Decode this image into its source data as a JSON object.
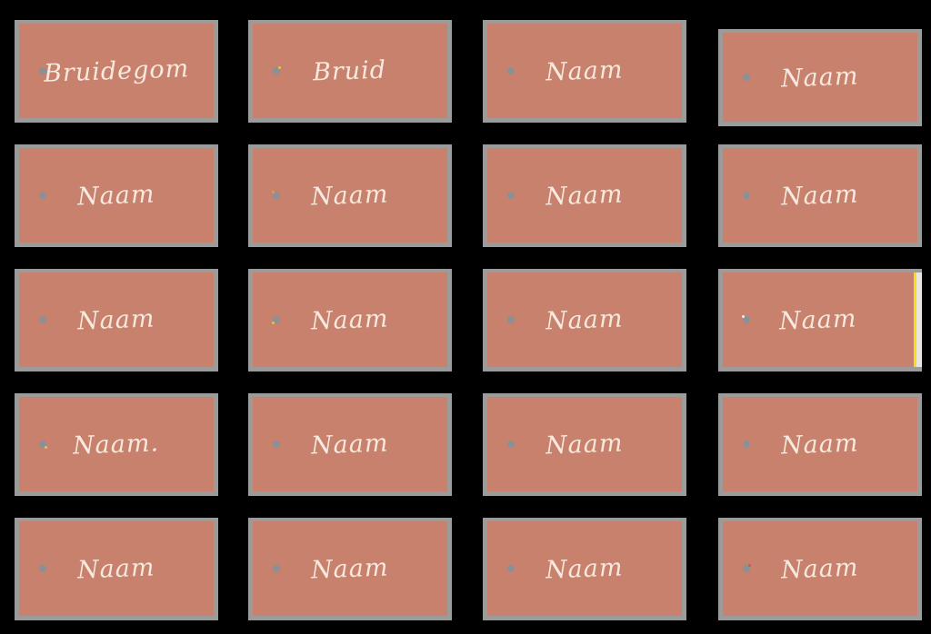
{
  "sheet": {
    "background_color": "#000000",
    "rows": 5,
    "columns": 4
  },
  "card_style": {
    "fill_color": "#c7816c",
    "frame_color": "#9b9b9b",
    "text_color": "#f8e9df",
    "hole_color": "#8a9196"
  },
  "page_edge_guide": {
    "line_color": "#f0e11c",
    "margin_color": "#e9e6e1"
  },
  "cards": [
    {
      "row": 1,
      "col": 1,
      "label": "Bruidegom",
      "hole_accent": null,
      "modifiers": []
    },
    {
      "row": 1,
      "col": 2,
      "label": "Bruid",
      "hole_accent": {
        "color": "#e6c63d",
        "corner": "top-right"
      },
      "modifiers": []
    },
    {
      "row": 1,
      "col": 3,
      "label": "Naam",
      "hole_accent": null,
      "modifiers": []
    },
    {
      "row": 1,
      "col": 4,
      "label": "Naam",
      "hole_accent": null,
      "modifiers": [
        "shifted-down"
      ]
    },
    {
      "row": 2,
      "col": 1,
      "label": "Naam",
      "hole_accent": null,
      "modifiers": []
    },
    {
      "row": 2,
      "col": 2,
      "label": "Naam",
      "hole_accent": {
        "color": "#e09b4a",
        "corner": "top-left"
      },
      "modifiers": []
    },
    {
      "row": 2,
      "col": 3,
      "label": "Naam",
      "hole_accent": null,
      "modifiers": []
    },
    {
      "row": 2,
      "col": 4,
      "label": "Naam",
      "hole_accent": null,
      "modifiers": []
    },
    {
      "row": 3,
      "col": 1,
      "label": "Naam",
      "hole_accent": null,
      "modifiers": []
    },
    {
      "row": 3,
      "col": 2,
      "label": "Naam",
      "hole_accent": {
        "color": "#e6c63d",
        "corner": "bottom-left"
      },
      "modifiers": []
    },
    {
      "row": 3,
      "col": 3,
      "label": "Naam",
      "hole_accent": null,
      "modifiers": []
    },
    {
      "row": 3,
      "col": 4,
      "label": "Naam",
      "hole_accent": {
        "color": "#f4efe2",
        "corner": "top-left"
      },
      "modifiers": [
        "page-edge"
      ]
    },
    {
      "row": 4,
      "col": 1,
      "label": "Naam.",
      "hole_accent": {
        "color": "#e6c63d",
        "corner": "bottom-right"
      },
      "modifiers": []
    },
    {
      "row": 4,
      "col": 2,
      "label": "Naam",
      "hole_accent": null,
      "modifiers": []
    },
    {
      "row": 4,
      "col": 3,
      "label": "Naam",
      "hole_accent": null,
      "modifiers": []
    },
    {
      "row": 4,
      "col": 4,
      "label": "Naam",
      "hole_accent": null,
      "modifiers": []
    },
    {
      "row": 5,
      "col": 1,
      "label": "Naam",
      "hole_accent": null,
      "modifiers": []
    },
    {
      "row": 5,
      "col": 2,
      "label": "Naam",
      "hole_accent": null,
      "modifiers": []
    },
    {
      "row": 5,
      "col": 3,
      "label": "Naam",
      "hole_accent": null,
      "modifiers": []
    },
    {
      "row": 5,
      "col": 4,
      "label": "Naam",
      "hole_accent": {
        "color": "#dd5145",
        "corner": "top-right"
      },
      "modifiers": []
    }
  ]
}
